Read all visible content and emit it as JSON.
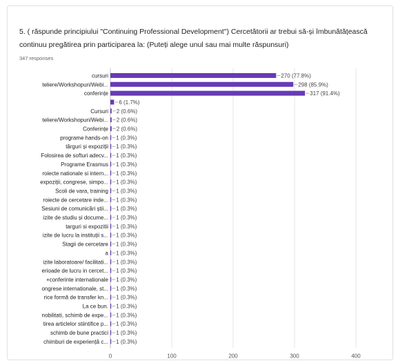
{
  "question": {
    "text": "5. ( răspunde principiului \"Continuing Professional Development\") Cercetătorii ar trebui să-și îmbunătățească continuu pregătirea prin participarea la: (Puteți alege unul sau mai multe răspunsuri)",
    "responses": "347 responses"
  },
  "chart_data": {
    "type": "bar",
    "orientation": "horizontal",
    "categories": [
      "cursuri",
      "teliere/Workshopuri/Webi...",
      "conferințe",
      "",
      "Cursuri",
      "teliere/Workshopuri/Webi...",
      "Conferințe",
      "programe hands-on",
      "târguri și expoziții",
      "Folosirea de softuri adecv...",
      "Programe Erasmus",
      "roiecte nationale si intern...",
      "expoziții, congrese, simpo...",
      "Scoli de vara, training",
      "roiecte de cercetare inde...",
      "Sesiuni de comunicări știi...",
      "izite de studiu și docume...",
      "targuri si expozitii",
      "izite de lucru la instituții s...",
      "Stagii de cercetare",
      "a",
      "izite laboratoare/ facilitati...",
      "erioade de lucru in cercet...",
      "+conferinte internationale",
      "ongrese internationale, st...",
      "rice formă de transfer kn...",
      "La ce bun.",
      "nobilitati, schimb de expe...",
      "tirea articlelor stiintifice p...",
      "schimb de bune practici",
      "chimburi de experiență c..."
    ],
    "values": [
      270,
      298,
      317,
      6,
      2,
      2,
      2,
      1,
      1,
      1,
      1,
      1,
      1,
      1,
      1,
      1,
      1,
      1,
      1,
      1,
      1,
      1,
      1,
      1,
      1,
      1,
      1,
      1,
      1,
      1,
      1
    ],
    "value_labels": [
      "270 (77.8%)",
      "298 (85.9%)",
      "317 (91.4%)",
      "6 (1.7%)",
      "2 (0.6%)",
      "2 (0.6%)",
      "2 (0.6%)",
      "1 (0.3%)",
      "1 (0.3%)",
      "1 (0.3%)",
      "1 (0.3%)",
      "1 (0.3%)",
      "1 (0.3%)",
      "1 (0.3%)",
      "1 (0.3%)",
      "1 (0.3%)",
      "1 (0.3%)",
      "1 (0.3%)",
      "1 (0.3%)",
      "1 (0.3%)",
      "1 (0.3%)",
      "1 (0.3%)",
      "1 (0.3%)",
      "1 (0.3%)",
      "1 (0.3%)",
      "1 (0.3%)",
      "1 (0.3%)",
      "1 (0.3%)",
      "1 (0.3%)",
      "1 (0.3%)",
      "1 (0.3%)"
    ],
    "xticks": [
      0,
      100,
      200,
      300,
      400
    ],
    "xlim": [
      0,
      400
    ],
    "bar_color": "#673ab7",
    "grid": true,
    "legend": "none"
  }
}
